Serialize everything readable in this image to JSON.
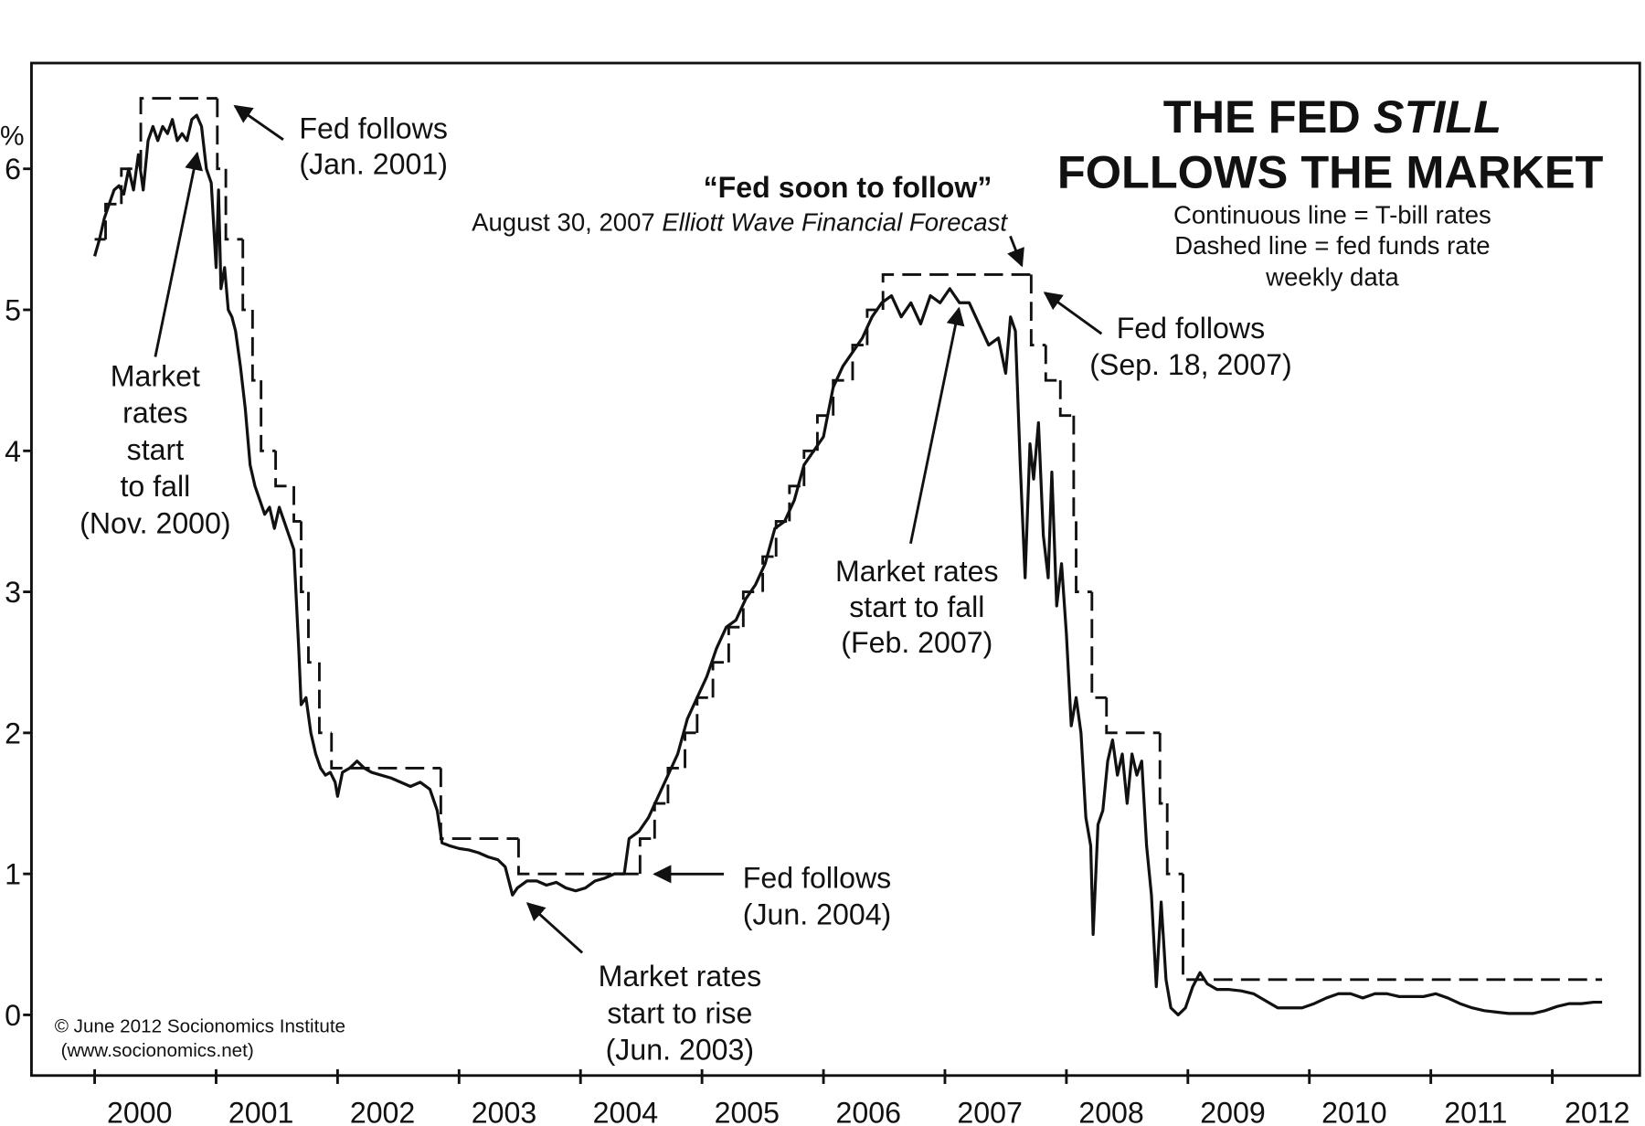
{
  "chart_data": {
    "type": "line",
    "title": {
      "line1": "THE FED",
      "line1_italic": "STILL",
      "line2": "FOLLOWS THE MARKET"
    },
    "subtitle": [
      "Continuous line = T-bill rates",
      "Dashed line = fed funds rate",
      "weekly data"
    ],
    "y_unit": "%",
    "xlim": [
      1999.48,
      2012.72
    ],
    "xticks": [
      2000,
      2001,
      2002,
      2003,
      2004,
      2005,
      2006,
      2007,
      2008,
      2009,
      2010,
      2011,
      2012
    ],
    "ylim": [
      -0.43,
      6.75
    ],
    "yticks": [
      0,
      1,
      2,
      3,
      4,
      5,
      6
    ],
    "series": [
      {
        "name": "T-bill rates",
        "color": "#111111",
        "dashed": false,
        "x": [
          2000.0,
          2000.04,
          2000.08,
          2000.12,
          2000.16,
          2000.2,
          2000.24,
          2000.28,
          2000.32,
          2000.36,
          2000.4,
          2000.44,
          2000.48,
          2000.52,
          2000.56,
          2000.6,
          2000.64,
          2000.68,
          2000.72,
          2000.76,
          2000.8,
          2000.84,
          2000.88,
          2000.92,
          2000.96,
          2001.0,
          2001.02,
          2001.04,
          2001.07,
          2001.1,
          2001.13,
          2001.16,
          2001.2,
          2001.24,
          2001.28,
          2001.32,
          2001.36,
          2001.4,
          2001.44,
          2001.48,
          2001.52,
          2001.56,
          2001.6,
          2001.64,
          2001.68,
          2001.7,
          2001.74,
          2001.78,
          2001.82,
          2001.86,
          2001.9,
          2001.94,
          2001.98,
          2002.0,
          2002.04,
          2002.1,
          2002.16,
          2002.22,
          2002.28,
          2002.36,
          2002.44,
          2002.52,
          2002.6,
          2002.68,
          2002.76,
          2002.82,
          2002.86,
          2002.92,
          2003.0,
          2003.08,
          2003.16,
          2003.24,
          2003.32,
          2003.38,
          2003.44,
          2003.48,
          2003.56,
          2003.64,
          2003.72,
          2003.8,
          2003.88,
          2003.96,
          2004.04,
          2004.12,
          2004.2,
          2004.28,
          2004.36,
          2004.4,
          2004.48,
          2004.56,
          2004.64,
          2004.72,
          2004.8,
          2004.88,
          2004.96,
          2005.04,
          2005.12,
          2005.2,
          2005.28,
          2005.36,
          2005.44,
          2005.52,
          2005.6,
          2005.68,
          2005.76,
          2005.84,
          2005.92,
          2006.0,
          2006.08,
          2006.16,
          2006.24,
          2006.32,
          2006.4,
          2006.48,
          2006.56,
          2006.64,
          2006.72,
          2006.8,
          2006.88,
          2006.96,
          2007.04,
          2007.12,
          2007.2,
          2007.28,
          2007.36,
          2007.44,
          2007.5,
          2007.54,
          2007.58,
          2007.62,
          2007.66,
          2007.7,
          2007.73,
          2007.77,
          2007.81,
          2007.85,
          2007.88,
          2007.92,
          2007.96,
          2008.0,
          2008.04,
          2008.08,
          2008.12,
          2008.16,
          2008.2,
          2008.22,
          2008.26,
          2008.3,
          2008.34,
          2008.38,
          2008.42,
          2008.46,
          2008.5,
          2008.54,
          2008.58,
          2008.62,
          2008.66,
          2008.7,
          2008.74,
          2008.78,
          2008.82,
          2008.86,
          2008.92,
          2008.98,
          2009.04,
          2009.1,
          2009.16,
          2009.24,
          2009.34,
          2009.44,
          2009.54,
          2009.64,
          2009.74,
          2009.84,
          2009.94,
          2010.04,
          2010.14,
          2010.24,
          2010.34,
          2010.44,
          2010.54,
          2010.64,
          2010.74,
          2010.84,
          2010.94,
          2011.04,
          2011.14,
          2011.24,
          2011.34,
          2011.44,
          2011.54,
          2011.64,
          2011.74,
          2011.84,
          2011.94,
          2012.04,
          2012.14,
          2012.24,
          2012.34,
          2012.41
        ],
        "values": [
          5.38,
          5.5,
          5.65,
          5.75,
          5.85,
          5.88,
          5.82,
          6.0,
          5.85,
          6.1,
          5.85,
          6.2,
          6.3,
          6.2,
          6.3,
          6.25,
          6.35,
          6.2,
          6.25,
          6.2,
          6.35,
          6.38,
          6.3,
          6.0,
          5.9,
          5.3,
          5.85,
          5.15,
          5.3,
          5.0,
          4.95,
          4.85,
          4.6,
          4.3,
          3.9,
          3.75,
          3.65,
          3.55,
          3.6,
          3.45,
          3.6,
          3.5,
          3.4,
          3.3,
          2.6,
          2.2,
          2.25,
          2.0,
          1.85,
          1.75,
          1.7,
          1.72,
          1.65,
          1.55,
          1.72,
          1.75,
          1.8,
          1.75,
          1.72,
          1.7,
          1.68,
          1.65,
          1.62,
          1.65,
          1.6,
          1.45,
          1.22,
          1.2,
          1.18,
          1.17,
          1.15,
          1.12,
          1.1,
          1.05,
          0.85,
          0.9,
          0.95,
          0.95,
          0.92,
          0.94,
          0.9,
          0.88,
          0.9,
          0.95,
          0.97,
          1.0,
          1.0,
          1.25,
          1.3,
          1.4,
          1.55,
          1.7,
          1.85,
          2.1,
          2.25,
          2.4,
          2.6,
          2.75,
          2.8,
          2.95,
          3.05,
          3.2,
          3.45,
          3.5,
          3.65,
          3.9,
          4.0,
          4.1,
          4.45,
          4.6,
          4.7,
          4.8,
          4.95,
          5.05,
          5.1,
          4.95,
          5.05,
          4.9,
          5.1,
          5.05,
          5.15,
          5.05,
          5.05,
          4.9,
          4.75,
          4.8,
          4.55,
          4.95,
          4.85,
          3.9,
          3.1,
          4.05,
          3.8,
          4.2,
          3.4,
          3.1,
          3.85,
          2.9,
          3.2,
          2.7,
          2.05,
          2.25,
          2.0,
          1.4,
          1.2,
          0.57,
          1.35,
          1.45,
          1.8,
          1.95,
          1.7,
          1.85,
          1.5,
          1.85,
          1.7,
          1.8,
          1.2,
          0.85,
          0.2,
          0.8,
          0.25,
          0.05,
          0.0,
          0.05,
          0.2,
          0.3,
          0.22,
          0.18,
          0.18,
          0.17,
          0.15,
          0.1,
          0.05,
          0.05,
          0.05,
          0.08,
          0.12,
          0.15,
          0.15,
          0.12,
          0.15,
          0.15,
          0.13,
          0.13,
          0.13,
          0.15,
          0.12,
          0.08,
          0.05,
          0.03,
          0.02,
          0.01,
          0.01,
          0.01,
          0.03,
          0.06,
          0.08,
          0.08,
          0.09,
          0.09
        ]
      },
      {
        "name": "fed funds rate",
        "color": "#111111",
        "dashed": true,
        "step": true,
        "x": [
          2000.0,
          2000.09,
          2000.22,
          2000.38,
          2001.01,
          2001.08,
          2001.22,
          2001.3,
          2001.37,
          2001.49,
          2001.64,
          2001.7,
          2001.76,
          2001.85,
          2001.95,
          2002.85,
          2003.49,
          2004.49,
          2004.61,
          2004.72,
          2004.86,
          2004.96,
          2005.09,
          2005.22,
          2005.34,
          2005.5,
          2005.61,
          2005.72,
          2005.84,
          2005.95,
          2006.08,
          2006.24,
          2006.36,
          2006.49,
          2007.71,
          2007.83,
          2007.95,
          2008.06,
          2008.08,
          2008.21,
          2008.33,
          2008.77,
          2008.83,
          2008.96,
          2012.41
        ],
        "values": [
          5.5,
          5.75,
          6.0,
          6.5,
          6.0,
          5.5,
          5.0,
          4.5,
          4.0,
          3.75,
          3.5,
          3.0,
          2.5,
          2.0,
          1.75,
          1.25,
          1.0,
          1.25,
          1.5,
          1.75,
          2.0,
          2.25,
          2.5,
          2.75,
          3.0,
          3.25,
          3.5,
          3.75,
          4.0,
          4.25,
          4.5,
          4.75,
          5.0,
          5.25,
          4.75,
          4.5,
          4.25,
          3.5,
          3.0,
          2.25,
          2.0,
          1.5,
          1.0,
          0.25,
          0.25
        ]
      }
    ],
    "annotations": [
      {
        "lines": [
          "Fed follows",
          "(Jan. 2001)"
        ]
      },
      {
        "lines": [
          "Market",
          "rates",
          "start",
          "to fall",
          "(Nov. 2000)"
        ]
      },
      {
        "lines": [
          "Fed follows",
          "(Sep. 18, 2007)"
        ]
      },
      {
        "lines": [
          "Market rates",
          "start to fall",
          "(Feb. 2007)"
        ]
      },
      {
        "lines": [
          "Fed follows",
          "(Jun. 2004)"
        ]
      },
      {
        "lines": [
          "Market rates",
          "start to rise",
          "(Jun. 2003)"
        ]
      }
    ],
    "quote": {
      "text": "“Fed soon to follow”",
      "source": "August 30, 2007",
      "source_italic": "Elliott Wave Financial Forecast"
    },
    "credit": [
      "© June 2012 Socionomics Institute",
      "(www.socionomics.net)"
    ]
  }
}
